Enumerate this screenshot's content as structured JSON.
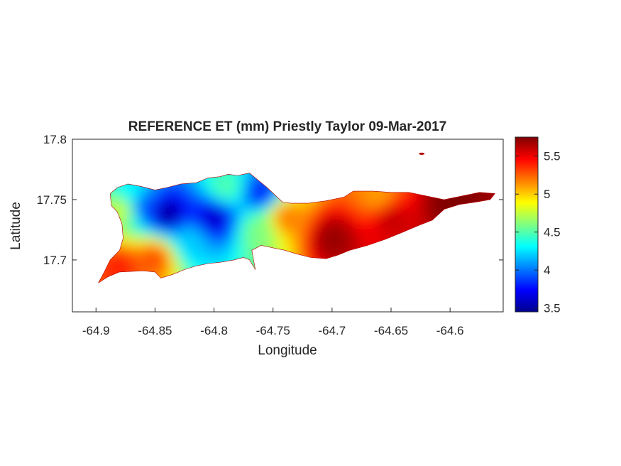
{
  "figure": {
    "title": "REFERENCE ET (mm) Priestly Taylor 09-Mar-2017",
    "xlabel": "Longitude",
    "ylabel": "Latitude"
  },
  "axes": {
    "x_ticks": [
      {
        "value": -64.9,
        "label": "-64.9"
      },
      {
        "value": -64.85,
        "label": "-64.85"
      },
      {
        "value": -64.8,
        "label": "-64.8"
      },
      {
        "value": -64.75,
        "label": "-64.75"
      },
      {
        "value": -64.7,
        "label": "-64.7"
      },
      {
        "value": -64.65,
        "label": "-64.65"
      },
      {
        "value": -64.6,
        "label": "-64.6"
      }
    ],
    "y_ticks": [
      {
        "value": 17.8,
        "label": "17.8"
      },
      {
        "value": 17.75,
        "label": "17.75"
      },
      {
        "value": 17.7,
        "label": "17.7"
      }
    ],
    "xlim": [
      -64.92,
      -64.555
    ],
    "ylim": [
      17.657,
      17.8
    ]
  },
  "colorbar": {
    "colormap": "jet",
    "range": [
      3.45,
      5.75
    ],
    "ticks": [
      {
        "value": 3.5,
        "label": "3.5"
      },
      {
        "value": 4,
        "label": "4"
      },
      {
        "value": 4.5,
        "label": "4.5"
      },
      {
        "value": 5,
        "label": "5"
      },
      {
        "value": 5.5,
        "label": "5.5"
      }
    ]
  },
  "chart_data": {
    "type": "heatmap",
    "title": "REFERENCE ET (mm) Priestly Taylor 09-Mar-2017",
    "xlabel": "Longitude",
    "ylabel": "Latitude",
    "xlim": [
      -64.92,
      -64.555
    ],
    "ylim": [
      17.657,
      17.8
    ],
    "zlim": [
      3.45,
      5.75
    ],
    "colormap": "jet",
    "grid": false,
    "box": true,
    "region_outline": [
      [
        -64.898,
        17.681
      ],
      [
        -64.89,
        17.686
      ],
      [
        -64.88,
        17.69
      ],
      [
        -64.86,
        17.691
      ],
      [
        -64.85,
        17.69
      ],
      [
        -64.845,
        17.685
      ],
      [
        -64.835,
        17.688
      ],
      [
        -64.825,
        17.692
      ],
      [
        -64.815,
        17.695
      ],
      [
        -64.805,
        17.697
      ],
      [
        -64.795,
        17.698
      ],
      [
        -64.783,
        17.7
      ],
      [
        -64.775,
        17.702
      ],
      [
        -64.77,
        17.7
      ],
      [
        -64.765,
        17.692
      ],
      [
        -64.768,
        17.708
      ],
      [
        -64.76,
        17.712
      ],
      [
        -64.75,
        17.71
      ],
      [
        -64.74,
        17.708
      ],
      [
        -64.73,
        17.705
      ],
      [
        -64.718,
        17.702
      ],
      [
        -64.705,
        17.701
      ],
      [
        -64.695,
        17.704
      ],
      [
        -64.685,
        17.708
      ],
      [
        -64.67,
        17.712
      ],
      [
        -64.655,
        17.717
      ],
      [
        -64.64,
        17.723
      ],
      [
        -64.628,
        17.728
      ],
      [
        -64.615,
        17.733
      ],
      [
        -64.605,
        17.742
      ],
      [
        -64.592,
        17.746
      ],
      [
        -64.578,
        17.748
      ],
      [
        -64.566,
        17.75
      ],
      [
        -64.562,
        17.755
      ],
      [
        -64.575,
        17.756
      ],
      [
        -64.59,
        17.753
      ],
      [
        -64.605,
        17.75
      ],
      [
        -64.62,
        17.753
      ],
      [
        -64.635,
        17.756
      ],
      [
        -64.65,
        17.756
      ],
      [
        -64.665,
        17.757
      ],
      [
        -64.682,
        17.757
      ],
      [
        -64.69,
        17.752
      ],
      [
        -64.705,
        17.749
      ],
      [
        -64.72,
        17.747
      ],
      [
        -64.735,
        17.747
      ],
      [
        -64.742,
        17.748
      ],
      [
        -64.755,
        17.76
      ],
      [
        -64.765,
        17.768
      ],
      [
        -64.77,
        17.772
      ],
      [
        -64.775,
        17.771
      ],
      [
        -64.78,
        17.77
      ],
      [
        -64.788,
        17.771
      ],
      [
        -64.795,
        17.769
      ],
      [
        -64.805,
        17.768
      ],
      [
        -64.815,
        17.764
      ],
      [
        -64.828,
        17.763
      ],
      [
        -64.84,
        17.76
      ],
      [
        -64.85,
        17.758
      ],
      [
        -64.862,
        17.761
      ],
      [
        -64.873,
        17.763
      ],
      [
        -64.882,
        17.76
      ],
      [
        -64.888,
        17.755
      ],
      [
        -64.887,
        17.745
      ],
      [
        -64.882,
        17.74
      ],
      [
        -64.878,
        17.73
      ],
      [
        -64.877,
        17.718
      ],
      [
        -64.88,
        17.708
      ],
      [
        -64.888,
        17.7
      ],
      [
        -64.893,
        17.69
      ]
    ],
    "islet": {
      "lon": -64.624,
      "lat": 17.788
    },
    "values": [
      {
        "lon": -64.84,
        "lat": 17.738,
        "z": 3.5
      },
      {
        "lon": -64.86,
        "lat": 17.745,
        "z": 3.9
      },
      {
        "lon": -64.8,
        "lat": 17.735,
        "z": 3.6
      },
      {
        "lon": -64.76,
        "lat": 17.755,
        "z": 3.8
      },
      {
        "lon": -64.878,
        "lat": 17.742,
        "z": 4.8
      },
      {
        "lon": -64.87,
        "lat": 17.755,
        "z": 4.3
      },
      {
        "lon": -64.79,
        "lat": 17.76,
        "z": 4.5
      },
      {
        "lon": -64.82,
        "lat": 17.715,
        "z": 4.2
      },
      {
        "lon": -64.76,
        "lat": 17.725,
        "z": 4.6
      },
      {
        "lon": -64.74,
        "lat": 17.735,
        "z": 5.2
      },
      {
        "lon": -64.85,
        "lat": 17.702,
        "z": 5.3
      },
      {
        "lon": -64.88,
        "lat": 17.695,
        "z": 5.4
      },
      {
        "lon": -64.7,
        "lat": 17.718,
        "z": 5.7
      },
      {
        "lon": -64.65,
        "lat": 17.735,
        "z": 5.6
      },
      {
        "lon": -64.6,
        "lat": 17.748,
        "z": 5.75
      },
      {
        "lon": -64.66,
        "lat": 17.752,
        "z": 5.1
      }
    ]
  }
}
